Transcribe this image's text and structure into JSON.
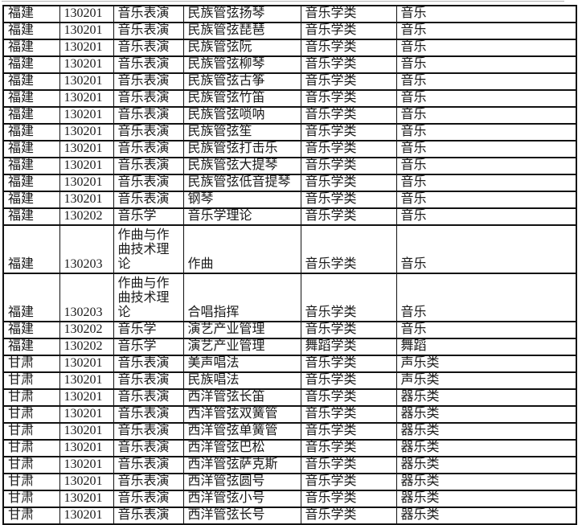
{
  "colors": {
    "border": "#111111",
    "text": "#1a1a1a",
    "divider": "#b3b3b3",
    "background": "#ffffff"
  },
  "table": {
    "rows": [
      {
        "tall": false,
        "cells": [
          "福建",
          "130201",
          "音乐表演",
          "民族管弦扬琴",
          "音乐学类",
          "音乐"
        ]
      },
      {
        "tall": false,
        "cells": [
          "福建",
          "130201",
          "音乐表演",
          "民族管弦琵琶",
          "音乐学类",
          "音乐"
        ]
      },
      {
        "tall": false,
        "cells": [
          "福建",
          "130201",
          "音乐表演",
          "民族管弦阮",
          "音乐学类",
          "音乐"
        ]
      },
      {
        "tall": false,
        "cells": [
          "福建",
          "130201",
          "音乐表演",
          "民族管弦柳琴",
          "音乐学类",
          "音乐"
        ]
      },
      {
        "tall": false,
        "cells": [
          "福建",
          "130201",
          "音乐表演",
          "民族管弦古筝",
          "音乐学类",
          "音乐"
        ]
      },
      {
        "tall": false,
        "cells": [
          "福建",
          "130201",
          "音乐表演",
          "民族管弦竹笛",
          "音乐学类",
          "音乐"
        ]
      },
      {
        "tall": false,
        "cells": [
          "福建",
          "130201",
          "音乐表演",
          "民族管弦唢呐",
          "音乐学类",
          "音乐"
        ]
      },
      {
        "tall": false,
        "cells": [
          "福建",
          "130201",
          "音乐表演",
          "民族管弦笙",
          "音乐学类",
          "音乐"
        ]
      },
      {
        "tall": false,
        "cells": [
          "福建",
          "130201",
          "音乐表演",
          "民族管弦打击乐",
          "音乐学类",
          "音乐"
        ]
      },
      {
        "tall": false,
        "cells": [
          "福建",
          "130201",
          "音乐表演",
          "民族管弦大提琴",
          "音乐学类",
          "音乐"
        ]
      },
      {
        "tall": false,
        "cells": [
          "福建",
          "130201",
          "音乐表演",
          "民族管弦低音提琴",
          "音乐学类",
          "音乐"
        ]
      },
      {
        "tall": false,
        "cells": [
          "福建",
          "130201",
          "音乐表演",
          "钢琴",
          "音乐学类",
          "音乐"
        ]
      },
      {
        "tall": false,
        "cells": [
          "福建",
          "130202",
          "音乐学",
          "音乐学理论",
          "音乐学类",
          "音乐"
        ]
      },
      {
        "tall": true,
        "cells": [
          "福建",
          "130203",
          "作曲与作曲技术理论",
          "作曲",
          "音乐学类",
          "音乐"
        ]
      },
      {
        "tall": true,
        "cells": [
          "福建",
          "130203",
          "作曲与作曲技术理论",
          "合唱指挥",
          "音乐学类",
          "音乐"
        ]
      },
      {
        "tall": false,
        "cells": [
          "福建",
          "130202",
          "音乐学",
          "演艺产业管理",
          "音乐学类",
          "音乐"
        ]
      },
      {
        "tall": false,
        "cells": [
          "福建",
          "130202",
          "音乐学",
          "演艺产业管理",
          "舞蹈学类",
          "舞蹈"
        ]
      },
      {
        "tall": false,
        "cells": [
          "甘肃",
          "130201",
          "音乐表演",
          "美声唱法",
          "音乐学类",
          "声乐类"
        ]
      },
      {
        "tall": false,
        "cells": [
          "甘肃",
          "130201",
          "音乐表演",
          "民族唱法",
          "音乐学类",
          "声乐类"
        ]
      },
      {
        "tall": false,
        "cells": [
          "甘肃",
          "130201",
          "音乐表演",
          "西洋管弦长笛",
          "音乐学类",
          "器乐类"
        ]
      },
      {
        "tall": false,
        "cells": [
          "甘肃",
          "130201",
          "音乐表演",
          "西洋管弦双簧管",
          "音乐学类",
          "器乐类"
        ]
      },
      {
        "tall": false,
        "cells": [
          "甘肃",
          "130201",
          "音乐表演",
          "西洋管弦单簧管",
          "音乐学类",
          "器乐类"
        ]
      },
      {
        "tall": false,
        "cells": [
          "甘肃",
          "130201",
          "音乐表演",
          "西洋管弦巴松",
          "音乐学类",
          "器乐类"
        ]
      },
      {
        "tall": false,
        "cells": [
          "甘肃",
          "130201",
          "音乐表演",
          "西洋管弦萨克斯",
          "音乐学类",
          "器乐类"
        ]
      },
      {
        "tall": false,
        "cells": [
          "甘肃",
          "130201",
          "音乐表演",
          "西洋管弦圆号",
          "音乐学类",
          "器乐类"
        ]
      },
      {
        "tall": false,
        "cells": [
          "甘肃",
          "130201",
          "音乐表演",
          "西洋管弦小号",
          "音乐学类",
          "器乐类"
        ]
      },
      {
        "tall": false,
        "cells": [
          "甘肃",
          "130201",
          "音乐表演",
          "西洋管弦长号",
          "音乐学类",
          "器乐类"
        ]
      }
    ]
  }
}
